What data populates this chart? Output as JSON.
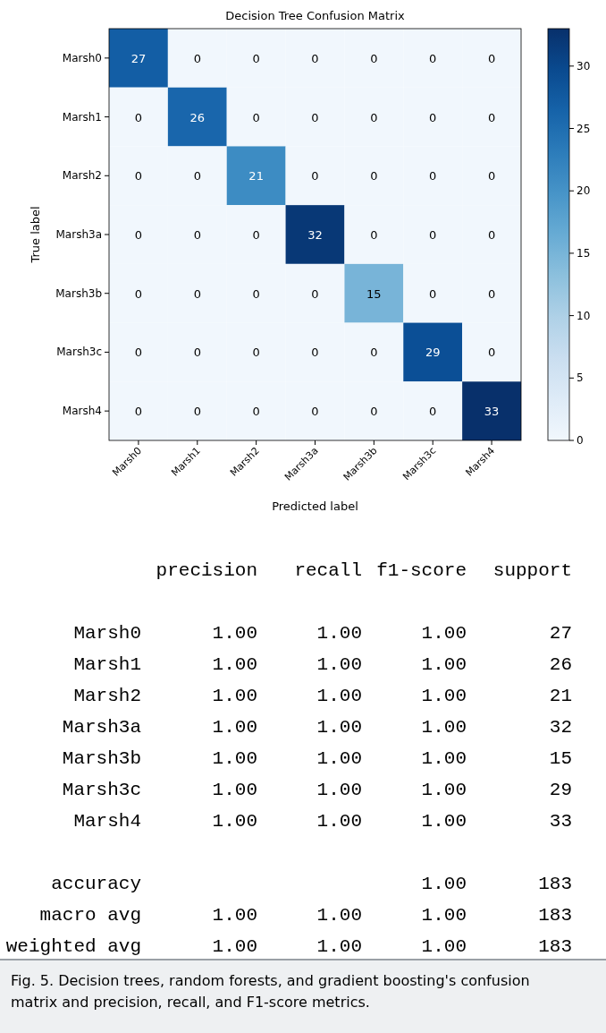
{
  "chart_data": [
    {
      "type": "heatmap",
      "title": "Decision Tree Confusion Matrix",
      "xlabel": "Predicted label",
      "ylabel": "True label",
      "categories": [
        "Marsh0",
        "Marsh1",
        "Marsh2",
        "Marsh3a",
        "Marsh3b",
        "Marsh3c",
        "Marsh4"
      ],
      "y_categories": [
        "Marsh0",
        "Marsh1",
        "Marsh2",
        "Marsh3a",
        "Marsh3b",
        "Marsh3c",
        "Marsh4"
      ],
      "cells": [
        [
          27,
          0,
          0,
          0,
          0,
          0,
          0
        ],
        [
          0,
          26,
          0,
          0,
          0,
          0,
          0
        ],
        [
          0,
          0,
          21,
          0,
          0,
          0,
          0
        ],
        [
          0,
          0,
          0,
          32,
          0,
          0,
          0
        ],
        [
          0,
          0,
          0,
          0,
          15,
          0,
          0
        ],
        [
          0,
          0,
          0,
          0,
          0,
          29,
          0
        ],
        [
          0,
          0,
          0,
          0,
          0,
          0,
          33
        ]
      ],
      "clim": [
        0,
        33
      ],
      "cticks": [
        0,
        5,
        10,
        15,
        20,
        25,
        30
      ],
      "data_labels": true
    },
    {
      "type": "other",
      "categories": [
        "precision",
        "recall",
        "f1-score",
        "support"
      ],
      "y_categories": [
        "Marsh0",
        "Marsh1",
        "Marsh2",
        "Marsh3a",
        "Marsh3b",
        "Marsh3c",
        "Marsh4",
        null,
        "accuracy",
        "macro avg",
        "weighted avg"
      ],
      "cell_labels": [
        [
          "1.00",
          "1.00",
          "1.00",
          "27"
        ],
        [
          "1.00",
          "1.00",
          "1.00",
          "26"
        ],
        [
          "1.00",
          "1.00",
          "1.00",
          "21"
        ],
        [
          "1.00",
          "1.00",
          "1.00",
          "32"
        ],
        [
          "1.00",
          "1.00",
          "1.00",
          "15"
        ],
        [
          "1.00",
          "1.00",
          "1.00",
          "29"
        ],
        [
          "1.00",
          "1.00",
          "1.00",
          "33"
        ],
        [
          null,
          null,
          null,
          null
        ],
        [
          null,
          null,
          "1.00",
          "183"
        ],
        [
          "1.00",
          "1.00",
          "1.00",
          "183"
        ],
        [
          "1.00",
          "1.00",
          "1.00",
          "183"
        ]
      ],
      "annotations": [
        "Fig. 5. Decision trees, random forests, and gradient boosting's confusion matrix and precision, recall, and F1-score metrics."
      ]
    }
  ]
}
